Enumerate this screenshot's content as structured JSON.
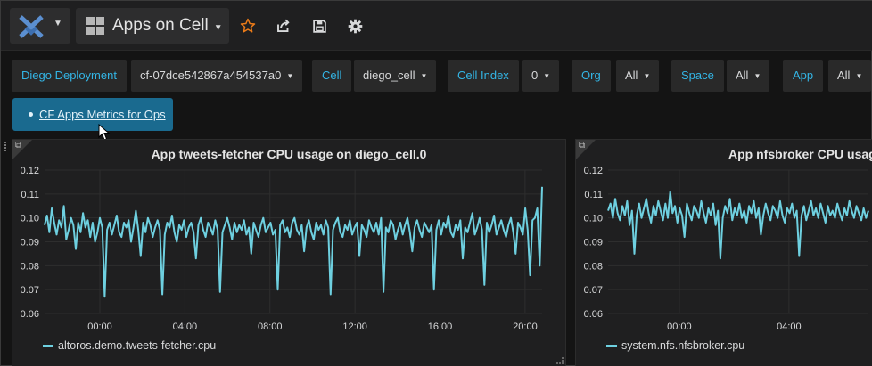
{
  "nav": {
    "dashboard_title": "Apps on Cell",
    "icons": [
      "grafana-logo-icon",
      "star-icon",
      "share-icon",
      "save-icon",
      "gear-icon"
    ],
    "star_color": "#eb7b18"
  },
  "vars": [
    {
      "label": "Diego Deployment",
      "value": "cf-07dce542867a454537a0"
    },
    {
      "label": "Cell",
      "value": "diego_cell"
    },
    {
      "label": "Cell Index",
      "value": "0"
    },
    {
      "label": "Org",
      "value": "All"
    },
    {
      "label": "Space",
      "value": "All"
    },
    {
      "label": "App",
      "value": "All"
    }
  ],
  "links_popup": {
    "link": "CF Apps Metrics for Ops"
  },
  "colors": {
    "accent": "#33b5e5",
    "series": "#6ed0e0"
  },
  "chart_data": [
    {
      "type": "line",
      "title": "App tweets-fetcher CPU usage on diego_cell.0",
      "ylim": [
        0.06,
        0.12
      ],
      "yticks": [
        "0.12",
        "0.11",
        "0.10",
        "0.09",
        "0.08",
        "0.07",
        "0.06"
      ],
      "xticks": [
        "00:00",
        "04:00",
        "08:00",
        "12:00",
        "16:00",
        "20:00"
      ],
      "x_range_hours": [
        -2.6,
        20.8
      ],
      "grid": true,
      "legend_position": "bottom-left",
      "series": [
        {
          "name": "altoros.demo.tweets-fetcher.cpu",
          "values": [
            0.097,
            0.101,
            0.094,
            0.104,
            0.098,
            0.093,
            0.099,
            0.096,
            0.105,
            0.091,
            0.095,
            0.1,
            0.097,
            0.087,
            0.098,
            0.094,
            0.102,
            0.096,
            0.099,
            0.092,
            0.098,
            0.09,
            0.094,
            0.1,
            0.096,
            0.067,
            0.095,
            0.098,
            0.093,
            0.097,
            0.101,
            0.094,
            0.092,
            0.098,
            0.096,
            0.099,
            0.09,
            0.096,
            0.103,
            0.095,
            0.084,
            0.098,
            0.094,
            0.1,
            0.097,
            0.092,
            0.096,
            0.099,
            0.095,
            0.068,
            0.093,
            0.098,
            0.096,
            0.101,
            0.094,
            0.09,
            0.097,
            0.095,
            0.099,
            0.092,
            0.096,
            0.098,
            0.094,
            0.083,
            0.097,
            0.1,
            0.095,
            0.092,
            0.098,
            0.096,
            0.093,
            0.099,
            0.095,
            0.069,
            0.094,
            0.097,
            0.1,
            0.096,
            0.091,
            0.098,
            0.094,
            0.097,
            0.095,
            0.099,
            0.093,
            0.096,
            0.085,
            0.098,
            0.095,
            0.092,
            0.097,
            0.1,
            0.094,
            0.096,
            0.098,
            0.093,
            0.095,
            0.07,
            0.097,
            0.099,
            0.094,
            0.096,
            0.092,
            0.098,
            0.1,
            0.095,
            0.093,
            0.097,
            0.086,
            0.096,
            0.099,
            0.094,
            0.091,
            0.098,
            0.095,
            0.097,
            0.093,
            0.099,
            0.096,
            0.068,
            0.095,
            0.098,
            0.1,
            0.094,
            0.092,
            0.097,
            0.095,
            0.099,
            0.093,
            0.096,
            0.098,
            0.084,
            0.097,
            0.095,
            0.092,
            0.099,
            0.096,
            0.094,
            0.098,
            0.093,
            0.1,
            0.069,
            0.096,
            0.094,
            0.099,
            0.097,
            0.091,
            0.095,
            0.098,
            0.093,
            0.097,
            0.1,
            0.094,
            0.086,
            0.096,
            0.099,
            0.095,
            0.092,
            0.098,
            0.096,
            0.094,
            0.097,
            0.07,
            0.095,
            0.099,
            0.093,
            0.098,
            0.096,
            0.101,
            0.094,
            0.092,
            0.097,
            0.095,
            0.099,
            0.083,
            0.096,
            0.094,
            0.098,
            0.102,
            0.093,
            0.096,
            0.1,
            0.095,
            0.072,
            0.098,
            0.094,
            0.097,
            0.101,
            0.093,
            0.096,
            0.099,
            0.095,
            0.092,
            0.097,
            0.1,
            0.094,
            0.085,
            0.098,
            0.096,
            0.093,
            0.104,
            0.095,
            0.076,
            0.099,
            0.1,
            0.104,
            0.08,
            0.113
          ]
        }
      ]
    },
    {
      "type": "line",
      "title": "App nfsbroker CPU usage",
      "ylim": [
        0.06,
        0.12
      ],
      "yticks": [
        "0.12",
        "0.11",
        "0.10",
        "0.09",
        "0.08",
        "0.07",
        "0.06"
      ],
      "xticks": [
        "00:00",
        "04:00"
      ],
      "x_range_hours": [
        -2.6,
        6.9
      ],
      "grid": true,
      "legend_position": "bottom-left",
      "series": [
        {
          "name": "system.nfs.nfsbroker.cpu",
          "values": [
            0.103,
            0.106,
            0.1,
            0.108,
            0.102,
            0.099,
            0.105,
            0.101,
            0.107,
            0.097,
            0.103,
            0.085,
            0.101,
            0.106,
            0.1,
            0.104,
            0.108,
            0.102,
            0.098,
            0.105,
            0.101,
            0.107,
            0.103,
            0.099,
            0.106,
            0.1,
            0.111,
            0.102,
            0.105,
            0.098,
            0.104,
            0.101,
            0.092,
            0.106,
            0.102,
            0.099,
            0.105,
            0.103,
            0.1,
            0.107,
            0.102,
            0.098,
            0.104,
            0.101,
            0.106,
            0.097,
            0.103,
            0.083,
            0.1,
            0.105,
            0.102,
            0.108,
            0.099,
            0.104,
            0.101,
            0.106,
            0.1,
            0.103,
            0.098,
            0.105,
            0.102,
            0.107,
            0.1,
            0.104,
            0.093,
            0.101,
            0.106,
            0.102,
            0.099,
            0.105,
            0.103,
            0.1,
            0.107,
            0.101,
            0.098,
            0.104,
            0.102,
            0.106,
            0.1,
            0.103,
            0.084,
            0.101,
            0.105,
            0.099,
            0.103,
            0.107,
            0.101,
            0.104,
            0.1,
            0.106,
            0.102,
            0.098,
            0.105,
            0.101,
            0.103,
            0.1,
            0.106,
            0.102,
            0.099,
            0.104,
            0.101,
            0.107,
            0.103,
            0.1,
            0.105,
            0.102,
            0.099,
            0.104,
            0.1,
            0.103
          ]
        }
      ]
    }
  ]
}
